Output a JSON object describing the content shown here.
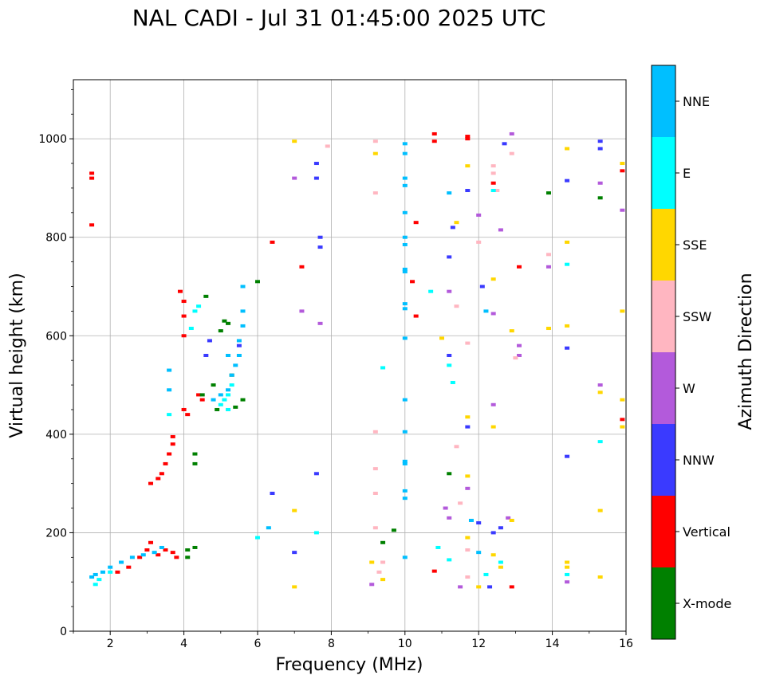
{
  "chart_data": {
    "type": "scatter",
    "title": "NAL CADI - Jul 31 01:45:00 2025 UTC",
    "xlabel": "Frequency (MHz)",
    "ylabel": "Virtual height (km)",
    "xlim": [
      1,
      16
    ],
    "ylim": [
      0,
      1120
    ],
    "x_ticks": [
      2,
      4,
      6,
      8,
      10,
      12,
      14,
      16
    ],
    "y_ticks": [
      0,
      200,
      400,
      600,
      800,
      1000
    ],
    "grid": true,
    "colorbar": {
      "title": "Azimuth Direction",
      "categories": [
        {
          "name": "X-mode",
          "color": "#008000"
        },
        {
          "name": "Vertical",
          "color": "#ff0000"
        },
        {
          "name": "NNW",
          "color": "#3a3aff"
        },
        {
          "name": "W",
          "color": "#b35adb"
        },
        {
          "name": "SSW",
          "color": "#ffb6c1"
        },
        {
          "name": "SSE",
          "color": "#ffd700"
        },
        {
          "name": "E",
          "color": "#00ffff"
        },
        {
          "name": "NNE",
          "color": "#00bfff"
        }
      ]
    },
    "series": [
      {
        "name": "Vertical",
        "color": "#ff0000",
        "points": [
          [
            1.5,
            930
          ],
          [
            1.5,
            920
          ],
          [
            1.5,
            825
          ],
          [
            3.3,
            310
          ],
          [
            3.4,
            320
          ],
          [
            3.5,
            340
          ],
          [
            3.6,
            360
          ],
          [
            3.7,
            380
          ],
          [
            3.7,
            395
          ],
          [
            3.1,
            300
          ],
          [
            3.9,
            690
          ],
          [
            4.0,
            670
          ],
          [
            4.0,
            640
          ],
          [
            4.0,
            600
          ],
          [
            4.0,
            450
          ],
          [
            4.1,
            440
          ],
          [
            4.4,
            480
          ],
          [
            4.5,
            470
          ],
          [
            2.2,
            120
          ],
          [
            2.5,
            130
          ],
          [
            2.8,
            150
          ],
          [
            3.0,
            165
          ],
          [
            3.1,
            180
          ],
          [
            3.3,
            155
          ],
          [
            3.5,
            165
          ],
          [
            3.7,
            160
          ],
          [
            3.8,
            150
          ],
          [
            6.4,
            790
          ],
          [
            7.2,
            740
          ],
          [
            10.2,
            710
          ],
          [
            10.3,
            830
          ],
          [
            10.3,
            640
          ],
          [
            10.8,
            1010
          ],
          [
            10.8,
            995
          ],
          [
            11.7,
            1005
          ],
          [
            11.7,
            1000
          ],
          [
            12.4,
            910
          ],
          [
            13.1,
            740
          ],
          [
            12.9,
            90
          ],
          [
            10.8,
            122
          ],
          [
            15.9,
            935
          ],
          [
            15.9,
            430
          ]
        ]
      },
      {
        "name": "X-mode",
        "color": "#008000",
        "points": [
          [
            4.1,
            165
          ],
          [
            4.1,
            150
          ],
          [
            4.3,
            170
          ],
          [
            4.3,
            360
          ],
          [
            4.3,
            340
          ],
          [
            4.8,
            500
          ],
          [
            4.9,
            450
          ],
          [
            5.1,
            630
          ],
          [
            5.2,
            625
          ],
          [
            5.0,
            610
          ],
          [
            4.6,
            680
          ],
          [
            6.0,
            710
          ],
          [
            5.3,
            520
          ],
          [
            5.6,
            470
          ],
          [
            9.4,
            180
          ],
          [
            9.7,
            205
          ],
          [
            11.2,
            320
          ],
          [
            13.9,
            890
          ],
          [
            15.3,
            880
          ],
          [
            4.5,
            480
          ],
          [
            5.4,
            455
          ]
        ]
      },
      {
        "name": "NNW",
        "color": "#3a3aff",
        "points": [
          [
            4.6,
            560
          ],
          [
            4.7,
            590
          ],
          [
            5.5,
            580
          ],
          [
            7.7,
            800
          ],
          [
            7.7,
            780
          ],
          [
            7.6,
            920
          ],
          [
            7.6,
            950
          ],
          [
            7.0,
            160
          ],
          [
            7.6,
            320
          ],
          [
            6.4,
            280
          ],
          [
            11.2,
            760
          ],
          [
            11.3,
            820
          ],
          [
            11.7,
            895
          ],
          [
            12.1,
            700
          ],
          [
            12.7,
            990
          ],
          [
            14.4,
            575
          ],
          [
            14.4,
            915
          ],
          [
            15.3,
            995
          ],
          [
            15.3,
            980
          ],
          [
            12.4,
            200
          ],
          [
            12.6,
            210
          ],
          [
            12.3,
            90
          ],
          [
            11.2,
            560
          ],
          [
            12.0,
            220
          ],
          [
            11.7,
            415
          ],
          [
            14.4,
            355
          ]
        ]
      },
      {
        "name": "W",
        "color": "#b35adb",
        "points": [
          [
            7.0,
            920
          ],
          [
            7.2,
            650
          ],
          [
            7.7,
            625
          ],
          [
            11.2,
            690
          ],
          [
            12.0,
            845
          ],
          [
            12.4,
            645
          ],
          [
            12.4,
            460
          ],
          [
            12.6,
            815
          ],
          [
            12.9,
            1010
          ],
          [
            13.1,
            580
          ],
          [
            13.1,
            560
          ],
          [
            13.9,
            740
          ],
          [
            14.4,
            100
          ],
          [
            15.3,
            500
          ],
          [
            15.3,
            910
          ],
          [
            15.9,
            855
          ],
          [
            11.7,
            290
          ],
          [
            12.8,
            230
          ],
          [
            11.1,
            250
          ],
          [
            11.2,
            230
          ],
          [
            9.1,
            95
          ],
          [
            11.5,
            90
          ]
        ]
      },
      {
        "name": "SSW",
        "color": "#ffb6c1",
        "points": [
          [
            7.9,
            985
          ],
          [
            9.2,
            995
          ],
          [
            9.2,
            890
          ],
          [
            9.2,
            405
          ],
          [
            9.2,
            330
          ],
          [
            9.2,
            280
          ],
          [
            9.2,
            210
          ],
          [
            11.4,
            660
          ],
          [
            11.4,
            375
          ],
          [
            11.7,
            585
          ],
          [
            12.0,
            790
          ],
          [
            12.4,
            945
          ],
          [
            12.4,
            930
          ],
          [
            12.9,
            970
          ],
          [
            13.9,
            765
          ],
          [
            9.3,
            120
          ],
          [
            9.4,
            140
          ],
          [
            11.7,
            165
          ],
          [
            11.7,
            110
          ],
          [
            11.5,
            260
          ],
          [
            12.5,
            895
          ],
          [
            13.0,
            555
          ]
        ]
      },
      {
        "name": "SSE",
        "color": "#ffd700",
        "points": [
          [
            7.0,
            995
          ],
          [
            9.2,
            970
          ],
          [
            11.0,
            595
          ],
          [
            11.4,
            830
          ],
          [
            11.7,
            945
          ],
          [
            11.7,
            435
          ],
          [
            11.7,
            315
          ],
          [
            12.4,
            715
          ],
          [
            12.4,
            415
          ],
          [
            12.4,
            155
          ],
          [
            12.6,
            130
          ],
          [
            12.9,
            610
          ],
          [
            12.9,
            225
          ],
          [
            13.9,
            615
          ],
          [
            14.4,
            980
          ],
          [
            14.4,
            790
          ],
          [
            14.4,
            620
          ],
          [
            14.4,
            140
          ],
          [
            14.4,
            130
          ],
          [
            15.3,
            485
          ],
          [
            15.3,
            245
          ],
          [
            15.3,
            110
          ],
          [
            15.9,
            950
          ],
          [
            15.9,
            650
          ],
          [
            15.9,
            470
          ],
          [
            15.9,
            415
          ],
          [
            9.1,
            140
          ],
          [
            9.4,
            105
          ],
          [
            7.0,
            90
          ],
          [
            7.0,
            245
          ],
          [
            12.0,
            90
          ],
          [
            11.7,
            190
          ]
        ]
      },
      {
        "name": "E",
        "color": "#00ffff",
        "points": [
          [
            3.6,
            440
          ],
          [
            4.2,
            615
          ],
          [
            4.3,
            650
          ],
          [
            4.4,
            660
          ],
          [
            5.0,
            460
          ],
          [
            5.1,
            470
          ],
          [
            5.2,
            480
          ],
          [
            5.3,
            500
          ],
          [
            5.2,
            450
          ],
          [
            6.0,
            190
          ],
          [
            7.6,
            200
          ],
          [
            9.4,
            535
          ],
          [
            10.7,
            690
          ],
          [
            11.2,
            540
          ],
          [
            11.3,
            505
          ],
          [
            12.2,
            115
          ],
          [
            12.4,
            895
          ],
          [
            12.6,
            140
          ],
          [
            14.4,
            745
          ],
          [
            14.4,
            115
          ],
          [
            15.3,
            385
          ],
          [
            1.6,
            95
          ],
          [
            1.7,
            105
          ],
          [
            2.0,
            120
          ],
          [
            10.9,
            170
          ],
          [
            11.2,
            145
          ]
        ]
      },
      {
        "name": "NNE",
        "color": "#00bfff",
        "points": [
          [
            1.5,
            110
          ],
          [
            1.6,
            115
          ],
          [
            1.8,
            120
          ],
          [
            2.0,
            130
          ],
          [
            2.3,
            140
          ],
          [
            2.6,
            150
          ],
          [
            2.9,
            155
          ],
          [
            3.2,
            160
          ],
          [
            3.4,
            170
          ],
          [
            3.6,
            490
          ],
          [
            3.6,
            530
          ],
          [
            4.8,
            470
          ],
          [
            5.0,
            480
          ],
          [
            5.2,
            490
          ],
          [
            5.3,
            520
          ],
          [
            5.4,
            540
          ],
          [
            5.5,
            560
          ],
          [
            5.5,
            590
          ],
          [
            5.6,
            620
          ],
          [
            5.6,
            650
          ],
          [
            5.6,
            700
          ],
          [
            5.2,
            560
          ],
          [
            6.3,
            210
          ],
          [
            10.0,
            990
          ],
          [
            10.0,
            970
          ],
          [
            10.0,
            920
          ],
          [
            10.0,
            905
          ],
          [
            10.0,
            850
          ],
          [
            10.0,
            800
          ],
          [
            10.0,
            785
          ],
          [
            10.0,
            735
          ],
          [
            10.0,
            730
          ],
          [
            10.0,
            665
          ],
          [
            10.0,
            655
          ],
          [
            10.0,
            595
          ],
          [
            10.0,
            470
          ],
          [
            10.0,
            405
          ],
          [
            10.0,
            345
          ],
          [
            10.0,
            340
          ],
          [
            10.0,
            285
          ],
          [
            10.0,
            270
          ],
          [
            10.0,
            150
          ],
          [
            11.2,
            890
          ],
          [
            11.8,
            225
          ],
          [
            12.0,
            160
          ],
          [
            12.2,
            650
          ]
        ]
      }
    ]
  }
}
